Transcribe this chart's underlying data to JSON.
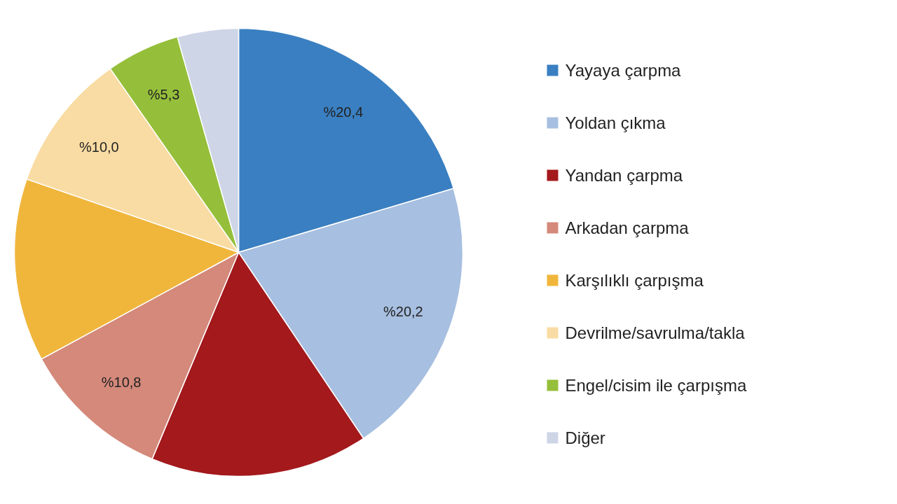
{
  "chart_data": {
    "type": "pie",
    "categories": [
      "Yayaya çarpma",
      "Yoldan çıkma",
      "Yandan çarpma",
      "Arkadan çarpma",
      "Karşılıklı çarpışma",
      "Devrilme/savrulma/takla",
      "Engel/cisim ile çarpışma",
      "Diğer"
    ],
    "values": [
      20.4,
      20.2,
      15.7,
      10.8,
      13.2,
      10.0,
      5.3,
      4.4
    ],
    "colors": [
      "#3a7fc1",
      "#a7bfe0",
      "#a3191c",
      "#d4897a",
      "#f0b63c",
      "#f9dca3",
      "#95bf3a",
      "#cdd5e6"
    ],
    "value_labels": [
      "%20,4",
      "%20,2",
      null,
      "%10,8",
      null,
      "%10,0",
      "%5,3",
      null
    ],
    "legend": "right"
  }
}
